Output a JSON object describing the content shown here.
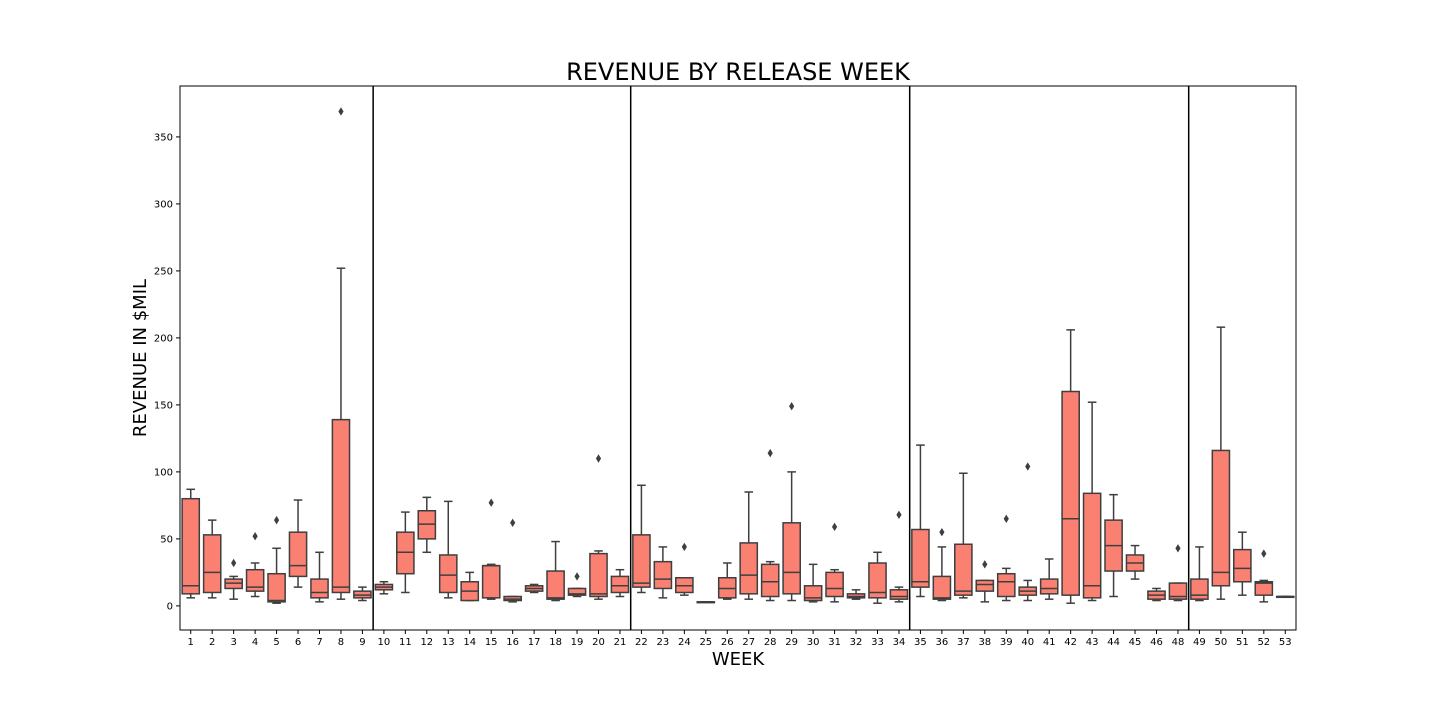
{
  "chart_data": {
    "type": "box",
    "title": "REVENUE BY RELEASE WEEK",
    "xlabel": "WEEK",
    "ylabel": "REVENUE IN $MIL",
    "ylim": [
      -18,
      388
    ],
    "yticks": [
      0,
      50,
      100,
      150,
      200,
      250,
      300,
      350
    ],
    "grid": false,
    "colors": {
      "box_fill": "#fa8072",
      "box_edge": "#3f3f3f",
      "divider": "#000000",
      "axis": "#000000"
    },
    "separators_after_week": [
      9,
      21,
      34,
      48
    ],
    "boxes": [
      {
        "week": "1",
        "lw": 6,
        "q1": 9,
        "med": 15,
        "q3": 80,
        "uw": 87,
        "fliers": []
      },
      {
        "week": "2",
        "lw": 6,
        "q1": 10,
        "med": 25,
        "q3": 53,
        "uw": 64,
        "fliers": []
      },
      {
        "week": "3",
        "lw": 5,
        "q1": 13,
        "med": 17,
        "q3": 20,
        "uw": 22,
        "fliers": [
          32
        ]
      },
      {
        "week": "4",
        "lw": 7,
        "q1": 11,
        "med": 14,
        "q3": 27,
        "uw": 32,
        "fliers": [
          52
        ]
      },
      {
        "week": "5",
        "lw": 2,
        "q1": 3,
        "med": 4,
        "q3": 24,
        "uw": 43,
        "fliers": [
          64
        ]
      },
      {
        "week": "6",
        "lw": 14,
        "q1": 22,
        "med": 30,
        "q3": 55,
        "uw": 79,
        "fliers": []
      },
      {
        "week": "7",
        "lw": 3,
        "q1": 6,
        "med": 10,
        "q3": 20,
        "uw": 40,
        "fliers": []
      },
      {
        "week": "8",
        "lw": 5,
        "q1": 10,
        "med": 14,
        "q3": 139,
        "uw": 252,
        "fliers": [
          369
        ]
      },
      {
        "week": "9",
        "lw": 4,
        "q1": 6,
        "med": 8,
        "q3": 11,
        "uw": 14,
        "fliers": []
      },
      {
        "week": "10",
        "lw": 9,
        "q1": 12,
        "med": 14,
        "q3": 16,
        "uw": 18,
        "fliers": []
      },
      {
        "week": "11",
        "lw": 10,
        "q1": 24,
        "med": 40,
        "q3": 55,
        "uw": 70,
        "fliers": []
      },
      {
        "week": "12",
        "lw": 40,
        "q1": 50,
        "med": 61,
        "q3": 71,
        "uw": 81,
        "fliers": []
      },
      {
        "week": "13",
        "lw": 6,
        "q1": 10,
        "med": 23,
        "q3": 38,
        "uw": 78,
        "fliers": []
      },
      {
        "week": "14",
        "lw": 4,
        "q1": 4,
        "med": 11,
        "q3": 18,
        "uw": 25,
        "fliers": []
      },
      {
        "week": "15",
        "lw": 5,
        "q1": 6,
        "med": 30,
        "q3": 30,
        "uw": 31,
        "fliers": [
          77
        ]
      },
      {
        "week": "16",
        "lw": 3,
        "q1": 4,
        "med": 5,
        "q3": 7,
        "uw": 7,
        "fliers": [
          62
        ]
      },
      {
        "week": "17",
        "lw": 10,
        "q1": 11,
        "med": 13,
        "q3": 15,
        "uw": 16,
        "fliers": []
      },
      {
        "week": "18",
        "lw": 4,
        "q1": 5,
        "med": 6,
        "q3": 26,
        "uw": 48,
        "fliers": []
      },
      {
        "week": "19",
        "lw": 7,
        "q1": 8,
        "med": 9,
        "q3": 13,
        "uw": 13,
        "fliers": [
          22
        ]
      },
      {
        "week": "20",
        "lw": 5,
        "q1": 7,
        "med": 9,
        "q3": 39,
        "uw": 41,
        "fliers": [
          110
        ]
      },
      {
        "week": "21",
        "lw": 7,
        "q1": 10,
        "med": 15,
        "q3": 22,
        "uw": 27,
        "fliers": []
      },
      {
        "week": "22",
        "lw": 10,
        "q1": 14,
        "med": 17,
        "q3": 53,
        "uw": 90,
        "fliers": []
      },
      {
        "week": "23",
        "lw": 6,
        "q1": 13,
        "med": 20,
        "q3": 33,
        "uw": 44,
        "fliers": []
      },
      {
        "week": "24",
        "lw": 8,
        "q1": 10,
        "med": 15,
        "q3": 21,
        "uw": 21,
        "fliers": [
          44
        ]
      },
      {
        "week": "25",
        "lw": 3,
        "q1": 3,
        "med": 3,
        "q3": 3,
        "uw": 3,
        "fliers": []
      },
      {
        "week": "26",
        "lw": 5,
        "q1": 6,
        "med": 13,
        "q3": 21,
        "uw": 32,
        "fliers": []
      },
      {
        "week": "27",
        "lw": 5,
        "q1": 9,
        "med": 23,
        "q3": 47,
        "uw": 85,
        "fliers": []
      },
      {
        "week": "28",
        "lw": 4,
        "q1": 7,
        "med": 18,
        "q3": 31,
        "uw": 33,
        "fliers": [
          114
        ]
      },
      {
        "week": "29",
        "lw": 4,
        "q1": 9,
        "med": 25,
        "q3": 62,
        "uw": 100,
        "fliers": [
          149
        ]
      },
      {
        "week": "30",
        "lw": 3,
        "q1": 4,
        "med": 6,
        "q3": 15,
        "uw": 31,
        "fliers": []
      },
      {
        "week": "31",
        "lw": 3,
        "q1": 7,
        "med": 13,
        "q3": 25,
        "uw": 27,
        "fliers": [
          59
        ]
      },
      {
        "week": "32",
        "lw": 5,
        "q1": 6,
        "med": 7,
        "q3": 9,
        "uw": 12,
        "fliers": []
      },
      {
        "week": "33",
        "lw": 2,
        "q1": 6,
        "med": 10,
        "q3": 32,
        "uw": 40,
        "fliers": []
      },
      {
        "week": "34",
        "lw": 3,
        "q1": 5,
        "med": 7,
        "q3": 12,
        "uw": 14,
        "fliers": [
          68
        ]
      },
      {
        "week": "35",
        "lw": 7,
        "q1": 14,
        "med": 18,
        "q3": 57,
        "uw": 120,
        "fliers": []
      },
      {
        "week": "36",
        "lw": 4,
        "q1": 5,
        "med": 6,
        "q3": 22,
        "uw": 44,
        "fliers": [
          55
        ]
      },
      {
        "week": "37",
        "lw": 6,
        "q1": 8,
        "med": 11,
        "q3": 46,
        "uw": 99,
        "fliers": []
      },
      {
        "week": "38",
        "lw": 3,
        "q1": 11,
        "med": 16,
        "q3": 19,
        "uw": 19,
        "fliers": [
          31
        ]
      },
      {
        "week": "39",
        "lw": 4,
        "q1": 7,
        "med": 18,
        "q3": 24,
        "uw": 28,
        "fliers": [
          65
        ]
      },
      {
        "week": "40",
        "lw": 4,
        "q1": 8,
        "med": 11,
        "q3": 14,
        "uw": 19,
        "fliers": [
          104
        ]
      },
      {
        "week": "41",
        "lw": 5,
        "q1": 9,
        "med": 13,
        "q3": 20,
        "uw": 35,
        "fliers": []
      },
      {
        "week": "42",
        "lw": 2,
        "q1": 8,
        "med": 65,
        "q3": 160,
        "uw": 206,
        "fliers": []
      },
      {
        "week": "43",
        "lw": 4,
        "q1": 6,
        "med": 15,
        "q3": 84,
        "uw": 152,
        "fliers": []
      },
      {
        "week": "44",
        "lw": 7,
        "q1": 26,
        "med": 45,
        "q3": 64,
        "uw": 83,
        "fliers": []
      },
      {
        "week": "45",
        "lw": 20,
        "q1": 26,
        "med": 32,
        "q3": 38,
        "uw": 45,
        "fliers": []
      },
      {
        "week": "46",
        "lw": 4,
        "q1": 5,
        "med": 8,
        "q3": 11,
        "uw": 13,
        "fliers": []
      },
      {
        "week": "48",
        "lw": 4,
        "q1": 5,
        "med": 7,
        "q3": 17,
        "uw": 17,
        "fliers": [
          43
        ]
      },
      {
        "week": "49",
        "lw": 4,
        "q1": 5,
        "med": 8,
        "q3": 20,
        "uw": 44,
        "fliers": []
      },
      {
        "week": "50",
        "lw": 5,
        "q1": 15,
        "med": 25,
        "q3": 116,
        "uw": 208,
        "fliers": []
      },
      {
        "week": "51",
        "lw": 8,
        "q1": 18,
        "med": 28,
        "q3": 42,
        "uw": 55,
        "fliers": []
      },
      {
        "week": "52",
        "lw": 3,
        "q1": 8,
        "med": 17,
        "q3": 18,
        "uw": 19,
        "fliers": [
          39
        ]
      },
      {
        "week": "53",
        "lw": 7,
        "q1": 7,
        "med": 7,
        "q3": 7,
        "uw": 7,
        "fliers": []
      }
    ]
  }
}
